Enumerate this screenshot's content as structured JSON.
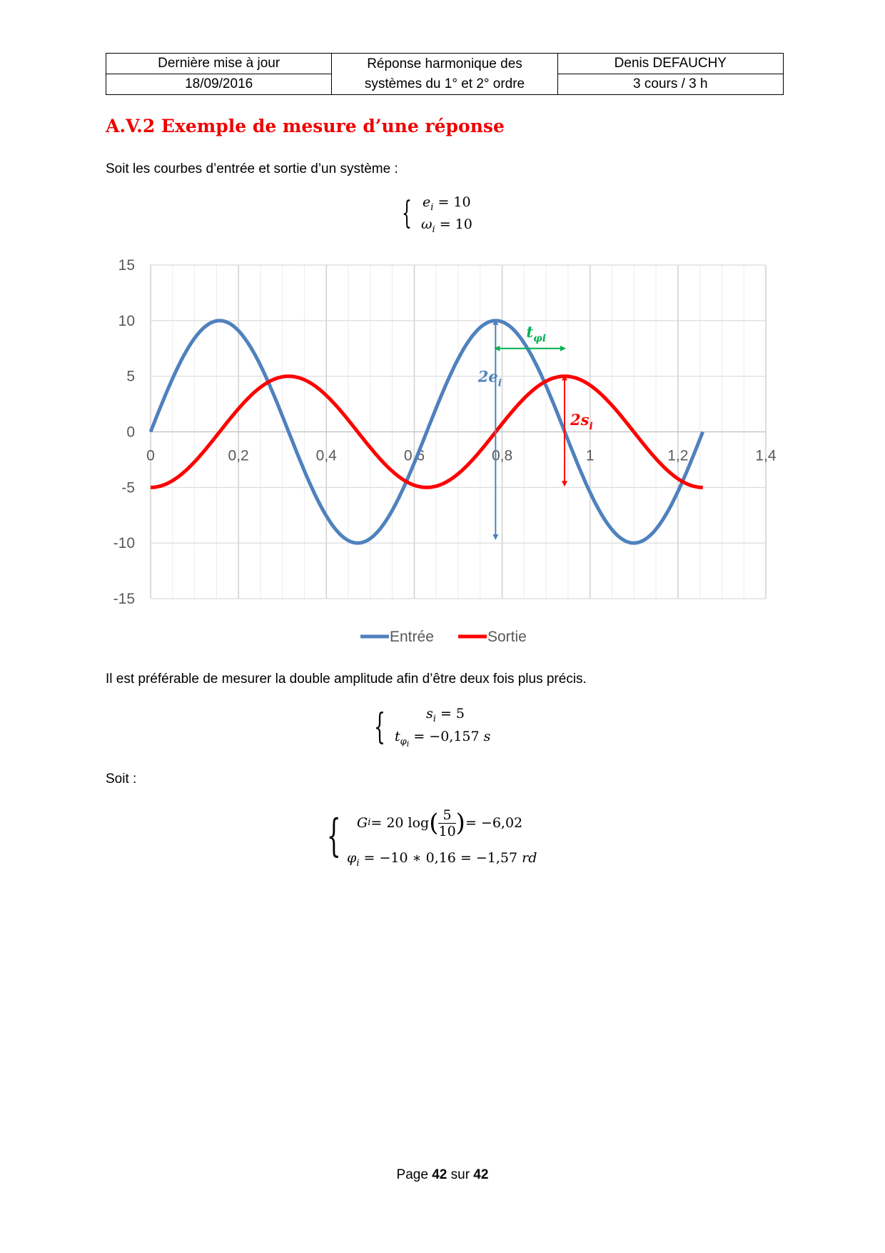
{
  "header": {
    "last_update_label": "Dernière mise à jour",
    "date": "18/09/2016",
    "title_line1": "Réponse harmonique des",
    "title_line2": "systèmes du 1° et 2° ordre",
    "author": "Denis DEFAUCHY",
    "course": "3 cours / 3 h"
  },
  "section_title": "A.V.2 Exemple de mesure d’une réponse",
  "intro": "Soit les courbes d’entrée et sortie d’un système :",
  "eq1": {
    "l1_var": "e",
    "l1_sub": "i",
    "l1_rhs": " = 10",
    "l2_var": "ω",
    "l2_sub": "i",
    "l2_rhs": " = 10"
  },
  "chart_data": {
    "type": "line",
    "xlim": [
      0,
      1.4
    ],
    "ylim": [
      -15,
      15
    ],
    "xticks": [
      "0",
      "0,2",
      "0,4",
      "0,6",
      "0,8",
      "1",
      "1,2",
      "1,4"
    ],
    "yticks": [
      "15",
      "10",
      "5",
      "0",
      "-5",
      "-10",
      "-15"
    ],
    "grid": true,
    "legend_position": "bottom",
    "series": [
      {
        "name": "Entrée",
        "color": "#4f81bd",
        "amplitude": 10,
        "omega": 10,
        "phase": 0,
        "t_start": 0,
        "t_end": 1.2566
      },
      {
        "name": "Sortie",
        "color": "#ff0000",
        "amplitude": 5,
        "omega": 10,
        "phase": -1.5708,
        "t_start": 0,
        "t_end": 1.2566
      }
    ],
    "annotations": [
      {
        "label": "2e",
        "sub": "i",
        "color": "#4f81bd",
        "x": 0.785,
        "y1": 10,
        "y2": -9.6,
        "label_x": 0.745,
        "label_y": 4.5
      },
      {
        "label": "t",
        "sub": "φi",
        "color": "#00b050",
        "y": 7.5,
        "x1": 0.785,
        "x2": 0.942,
        "label_x": 0.855,
        "label_y": 8.5
      },
      {
        "label": "2s",
        "sub": "i",
        "color": "#ff0000",
        "x": 0.942,
        "y1": 5,
        "y2": -4.8,
        "label_x": 0.955,
        "label_y": 0.6
      }
    ]
  },
  "para": "Il est préférable de mesurer la double amplitude afin d’être deux fois plus précis.",
  "eq2": {
    "l1": "s",
    "l1_sub": "i",
    "l1_rhs": " = 5",
    "l2": "t",
    "l2_sub": "φ",
    "l2_subsub": "i",
    "l2_rhs": " = −0,157 ",
    "l2_unit": "s"
  },
  "soit": "Soit :",
  "eq3": {
    "g": "G",
    "g_sub": "i",
    "g_mid": " = 20 log",
    "num": "5",
    "den": "10",
    "g_rhs": " = −6,02",
    "p": "φ",
    "p_sub": "i",
    "p_rhs": " = −10 ∗ 0,16 = −1,57 ",
    "p_unit": "rd"
  },
  "footer": {
    "prefix": "Page ",
    "page": "42",
    "mid": " sur ",
    "total": "42"
  }
}
